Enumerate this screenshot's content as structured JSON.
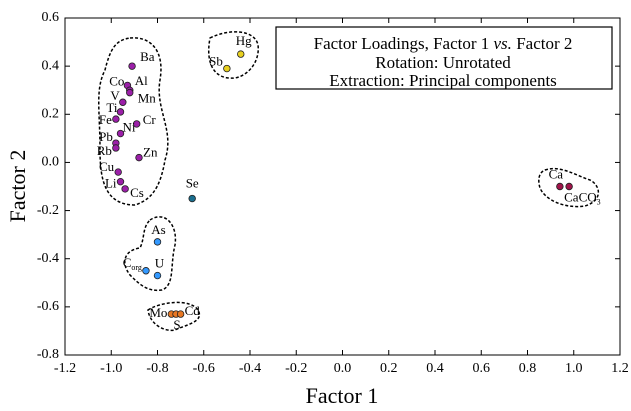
{
  "chart_data": {
    "type": "scatter",
    "title": [
      "Factor Loadings, Factor 1",
      "vs.",
      "Factor 2"
    ],
    "subtitle": [
      "Rotation: Unrotated",
      "Extraction: Principal components"
    ],
    "x_label": "Factor 1",
    "y_label": "Factor 2",
    "xlim": [
      -1.2,
      1.2
    ],
    "xticks": [
      -1.2,
      {
        "value": -1,
        "label": "-1.0"
      },
      -0.8,
      -0.6,
      -0.4,
      -0.2,
      {
        "value": 0,
        "label": "0.0"
      },
      0.2,
      0.4,
      0.6,
      0.8,
      {
        "value": 1,
        "label": "1.0"
      },
      1.2
    ],
    "ylim": [
      -0.8,
      0.6
    ],
    "yticks": [
      -0.8,
      -0.6,
      -0.4,
      -0.2,
      {
        "value": 0,
        "label": "0.0"
      },
      0.2,
      0.4,
      0.6
    ],
    "series": [
      {
        "color": "#9b1fa8",
        "labels": [
          "Ba",
          "Co",
          "Al",
          "V",
          "Mn",
          "Ti",
          "Fe",
          "Cr",
          "Ni",
          "Pb",
          "Rb",
          "Zn",
          "Cu",
          "Li",
          "Cs"
        ],
        "x": [
          -0.91,
          -0.93,
          -0.92,
          -0.95,
          -0.92,
          -0.96,
          -0.98,
          -0.89,
          -0.96,
          -0.98,
          -0.98,
          -0.88,
          -0.97,
          -0.96,
          -0.94
        ],
        "y": [
          0.4,
          0.32,
          0.3,
          0.25,
          0.29,
          0.21,
          0.18,
          0.16,
          0.12,
          0.08,
          0.06,
          0.02,
          -0.04,
          -0.08,
          -0.11
        ]
      },
      {
        "color": "#1a6e8e",
        "labels": [
          "Se"
        ],
        "x": [
          -0.65
        ],
        "y": [
          -0.15
        ]
      },
      {
        "color": "#3399ff",
        "labels": [
          "As",
          {
            "text": "C",
            "sub": "org"
          },
          "U"
        ],
        "x": [
          -0.8,
          -0.85,
          -0.8
        ],
        "y": [
          -0.33,
          -0.45,
          -0.47
        ]
      },
      {
        "color": "#e87722",
        "labels": [
          "Mo",
          "S",
          "Cd"
        ],
        "x": [
          -0.74,
          -0.72,
          -0.7
        ],
        "y": [
          -0.63,
          -0.63,
          -0.63
        ]
      },
      {
        "color": "#e8d020",
        "labels": [
          "Hg",
          "Sb"
        ],
        "x": [
          -0.44,
          -0.5
        ],
        "y": [
          0.45,
          0.39
        ]
      },
      {
        "color": "#a0144a",
        "labels": [
          "Ca",
          {
            "text": "CaCO",
            "sub": "3"
          }
        ],
        "x": [
          0.94,
          0.98
        ],
        "y": [
          -0.1,
          -0.1
        ]
      }
    ]
  }
}
